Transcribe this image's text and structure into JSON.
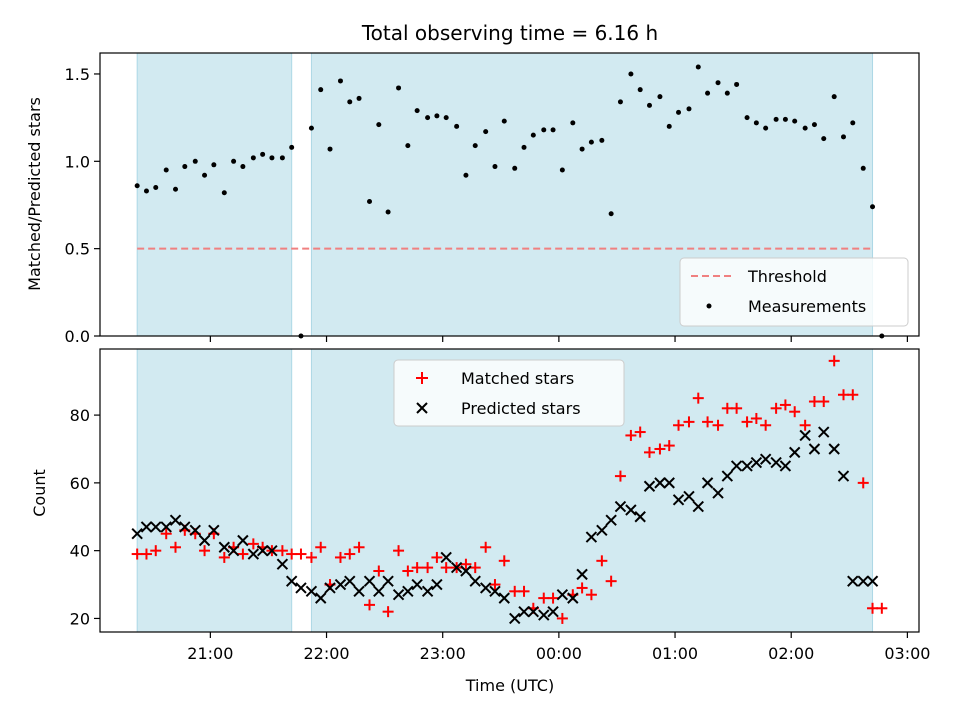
{
  "chart_data": [
    {
      "type": "scatter",
      "title": "Total observing time = 6.16 h",
      "ylabel": "Matched/Predicted stars",
      "xlabel": "",
      "ylim": [
        0,
        1.62
      ],
      "yticks": [
        "0.0",
        "0.5",
        "1.0",
        "1.5"
      ],
      "ytick_values": [
        0,
        0.5,
        1.0,
        1.5
      ],
      "shaded_intervals_hours": [
        [
          -2.63,
          -1.3
        ],
        [
          -1.13,
          3.7
        ]
      ],
      "shade_color": "#add8e6",
      "threshold": {
        "name": "Threshold",
        "value": 0.5,
        "x_range": [
          -2.63,
          3.7
        ],
        "color": "#f08080"
      },
      "legend": {
        "placement": "lower-right",
        "entries": [
          "Threshold",
          "Measurements"
        ]
      },
      "series": [
        {
          "name": "Measurements",
          "color": "#000000",
          "x": [
            -2.63,
            -2.55,
            -2.47,
            -2.38,
            -2.3,
            -2.22,
            -2.13,
            -2.05,
            -1.97,
            -1.88,
            -1.8,
            -1.72,
            -1.63,
            -1.55,
            -1.47,
            -1.38,
            -1.3,
            -1.22,
            -1.13,
            -1.05,
            -0.97,
            -0.88,
            -0.8,
            -0.72,
            -0.63,
            -0.55,
            -0.47,
            -0.38,
            -0.3,
            -0.22,
            -0.13,
            -0.05,
            0.03,
            0.12,
            0.2,
            0.28,
            0.37,
            0.45,
            0.53,
            0.62,
            0.7,
            0.78,
            0.87,
            0.95,
            1.03,
            1.12,
            1.2,
            1.28,
            1.37,
            1.45,
            1.53,
            1.62,
            1.7,
            1.78,
            1.87,
            1.95,
            2.03,
            2.12,
            2.2,
            2.28,
            2.37,
            2.45,
            2.53,
            2.62,
            2.7,
            2.78,
            2.87,
            2.95,
            3.03,
            3.12,
            3.2,
            3.28,
            3.37,
            3.45,
            3.53,
            3.62,
            3.7,
            3.78
          ],
          "y": [
            0.86,
            0.83,
            0.85,
            0.95,
            0.84,
            0.97,
            1.0,
            0.92,
            0.98,
            0.82,
            1.0,
            0.97,
            1.02,
            1.04,
            1.02,
            1.02,
            1.08,
            0.0,
            1.19,
            1.41,
            1.07,
            1.46,
            1.34,
            1.36,
            0.77,
            1.21,
            0.71,
            1.42,
            1.09,
            1.29,
            1.25,
            1.26,
            1.25,
            1.2,
            0.92,
            1.09,
            1.17,
            0.97,
            1.23,
            0.96,
            1.08,
            1.15,
            1.18,
            1.18,
            0.95,
            1.22,
            1.07,
            1.11,
            1.12,
            0.7,
            1.34,
            1.5,
            1.41,
            1.32,
            1.37,
            1.2,
            1.28,
            1.3,
            1.54,
            1.39,
            1.45,
            1.39,
            1.44,
            1.25,
            1.22,
            1.19,
            1.24,
            1.24,
            1.23,
            1.19,
            1.21,
            1.13,
            1.37,
            1.14,
            1.22,
            0.96,
            0.74,
            0.0
          ]
        }
      ]
    },
    {
      "type": "scatter",
      "title": "",
      "ylabel": "Count",
      "xlabel": "Time (UTC)",
      "ylim": [
        16,
        99.5
      ],
      "yticks": [
        "20",
        "40",
        "60",
        "80"
      ],
      "ytick_values": [
        20,
        40,
        60,
        80
      ],
      "xlim_hours": [
        -2.95,
        4.1
      ],
      "xticks": [
        "21:00",
        "22:00",
        "23:00",
        "00:00",
        "01:00",
        "02:00",
        "03:00"
      ],
      "xtick_values_hours": [
        -2.0,
        -1.0,
        0.0,
        1.0,
        2.0,
        3.0,
        4.0
      ],
      "shaded_intervals_hours": [
        [
          -2.63,
          -1.3
        ],
        [
          -1.13,
          3.7
        ]
      ],
      "shade_color": "#add8e6",
      "legend": {
        "placement": "upper-center",
        "entries": [
          "Matched stars",
          "Predicted stars"
        ]
      },
      "series": [
        {
          "name": "Matched stars",
          "marker": "plus",
          "color": "#ff0000",
          "x": [
            -2.63,
            -2.55,
            -2.47,
            -2.38,
            -2.3,
            -2.22,
            -2.13,
            -2.05,
            -1.97,
            -1.88,
            -1.8,
            -1.72,
            -1.63,
            -1.55,
            -1.47,
            -1.38,
            -1.3,
            -1.22,
            -1.13,
            -1.05,
            -0.97,
            -0.88,
            -0.8,
            -0.72,
            -0.63,
            -0.55,
            -0.47,
            -0.38,
            -0.3,
            -0.22,
            -0.13,
            -0.05,
            0.03,
            0.12,
            0.2,
            0.28,
            0.37,
            0.45,
            0.53,
            0.62,
            0.7,
            0.78,
            0.87,
            0.95,
            1.03,
            1.12,
            1.2,
            1.28,
            1.37,
            1.45,
            1.53,
            1.62,
            1.7,
            1.78,
            1.87,
            1.95,
            2.03,
            2.12,
            2.2,
            2.28,
            2.37,
            2.45,
            2.53,
            2.62,
            2.7,
            2.78,
            2.87,
            2.95,
            3.03,
            3.12,
            3.2,
            3.28,
            3.37,
            3.45,
            3.53,
            3.62,
            3.7,
            3.78
          ],
          "y": [
            39,
            39,
            40,
            45,
            41,
            46,
            45,
            40,
            45,
            38,
            41,
            39,
            42,
            41,
            40,
            40,
            39,
            39,
            38,
            41,
            30,
            38,
            39,
            41,
            24,
            34,
            22,
            40,
            34,
            35,
            35,
            38,
            35,
            35,
            36,
            35,
            41,
            30,
            37,
            28,
            28,
            23,
            26,
            26,
            20,
            27,
            29,
            27,
            37,
            31,
            62,
            74,
            75,
            69,
            70,
            71,
            77,
            78,
            85,
            78,
            77,
            82,
            82,
            78,
            79,
            77,
            82,
            83,
            81,
            77,
            84,
            84,
            96,
            86,
            86,
            60,
            23,
            23
          ]
        },
        {
          "name": "Predicted stars",
          "marker": "x",
          "color": "#000000",
          "x": [
            -2.63,
            -2.55,
            -2.47,
            -2.38,
            -2.3,
            -2.22,
            -2.13,
            -2.05,
            -1.97,
            -1.88,
            -1.8,
            -1.72,
            -1.63,
            -1.55,
            -1.47,
            -1.38,
            -1.3,
            -1.22,
            -1.13,
            -1.05,
            -0.97,
            -0.88,
            -0.8,
            -0.72,
            -0.63,
            -0.55,
            -0.47,
            -0.38,
            -0.3,
            -0.22,
            -0.13,
            -0.05,
            0.03,
            0.12,
            0.2,
            0.28,
            0.37,
            0.45,
            0.53,
            0.62,
            0.7,
            0.78,
            0.87,
            0.95,
            1.03,
            1.12,
            1.2,
            1.28,
            1.37,
            1.45,
            1.53,
            1.62,
            1.7,
            1.78,
            1.87,
            1.95,
            2.03,
            2.12,
            2.2,
            2.28,
            2.37,
            2.45,
            2.53,
            2.62,
            2.7,
            2.78,
            2.87,
            2.95,
            3.03,
            3.12,
            3.2,
            3.28,
            3.37,
            3.45,
            3.53,
            3.62,
            3.7
          ],
          "y": [
            45,
            47,
            47,
            47,
            49,
            47,
            46,
            43,
            46,
            41,
            40,
            43,
            39,
            40,
            40,
            36,
            31,
            29,
            28,
            26,
            29,
            30,
            31,
            28,
            31,
            28,
            31,
            27,
            28,
            30,
            28,
            30,
            38,
            35,
            34,
            31,
            29,
            28,
            26,
            20,
            22,
            22,
            21,
            22,
            27,
            26,
            33,
            44,
            46,
            49,
            53,
            52,
            50,
            59,
            60,
            60,
            55,
            56,
            53,
            60,
            57,
            62,
            65,
            65,
            66,
            67,
            66,
            65,
            69,
            74,
            70,
            75,
            70,
            62,
            31,
            31,
            31
          ]
        }
      ]
    }
  ]
}
